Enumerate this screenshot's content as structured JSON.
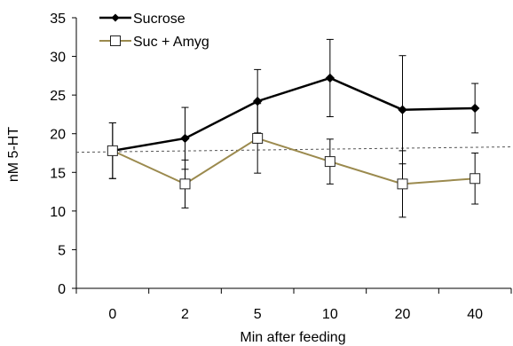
{
  "chart_data": {
    "type": "line",
    "title": "",
    "xlabel": "Min after feeding",
    "ylabel": "nM 5-HT",
    "categories": [
      "0",
      "2",
      "5",
      "10",
      "20",
      "40"
    ],
    "ylim": [
      0,
      35
    ],
    "yticks": [
      0,
      5,
      10,
      15,
      20,
      25,
      30,
      35
    ],
    "grid": false,
    "legend_position": "top-left",
    "series": [
      {
        "name": "Sucrose",
        "values": [
          17.8,
          19.4,
          24.2,
          27.2,
          23.1,
          23.3
        ],
        "error": [
          3.6,
          4.0,
          4.1,
          5.0,
          7.0,
          3.2
        ],
        "color": "#000000",
        "marker": "diamond-filled"
      },
      {
        "name": "Suc + Amyg",
        "values": [
          17.8,
          13.5,
          19.4,
          16.4,
          13.5,
          14.2
        ],
        "error": [
          3.6,
          3.1,
          4.5,
          2.9,
          4.3,
          3.3
        ],
        "color": "#9b8a4e",
        "marker": "square-open"
      }
    ],
    "reference_line": {
      "style": "dashed",
      "y_start": 17.6,
      "y_end": 18.3,
      "color": "#555555"
    }
  }
}
